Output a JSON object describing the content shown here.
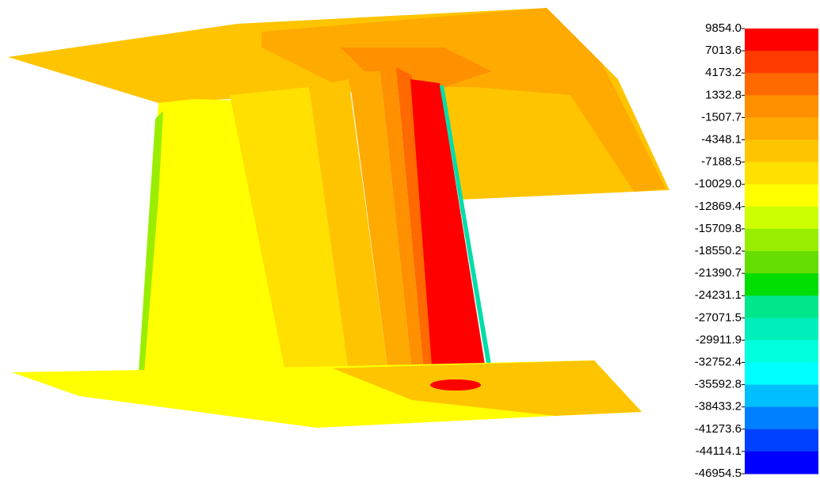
{
  "chart_data": {
    "type": "contour",
    "colorbar": {
      "ticks": [
        {
          "value": 9854.0,
          "label": "9854.0"
        },
        {
          "value": 7013.6,
          "label": "7013.6"
        },
        {
          "value": 4173.2,
          "label": "4173.2"
        },
        {
          "value": 1332.8,
          "label": "1332.8"
        },
        {
          "value": -1507.7,
          "label": "-1507.7"
        },
        {
          "value": -4348.1,
          "label": "-4348.1"
        },
        {
          "value": -7188.5,
          "label": "-7188.5"
        },
        {
          "value": -10029.0,
          "label": "-10029.0"
        },
        {
          "value": -12869.4,
          "label": "-12869.4"
        },
        {
          "value": -15709.8,
          "label": "-15709.8"
        },
        {
          "value": -18550.2,
          "label": "-18550.2"
        },
        {
          "value": -21390.7,
          "label": "-21390.7"
        },
        {
          "value": -24231.1,
          "label": "-24231.1"
        },
        {
          "value": -27071.5,
          "label": "-27071.5"
        },
        {
          "value": -29911.9,
          "label": "-29911.9"
        },
        {
          "value": -32752.4,
          "label": "-32752.4"
        },
        {
          "value": -35592.8,
          "label": "-35592.8"
        },
        {
          "value": -38433.2,
          "label": "-38433.2"
        },
        {
          "value": -41273.6,
          "label": "-41273.6"
        },
        {
          "value": -44114.1,
          "label": "-44114.1"
        },
        {
          "value": -46954.5,
          "label": "-46954.5"
        }
      ],
      "colors": [
        "#ff0000",
        "#ff3a00",
        "#ff6a00",
        "#ff9000",
        "#ffaa00",
        "#ffc400",
        "#ffe000",
        "#ffff00",
        "#ccff00",
        "#99ee00",
        "#66dd00",
        "#00dd00",
        "#00e68a",
        "#00eebb",
        "#00ffdd",
        "#00ffff",
        "#00bfff",
        "#0080ff",
        "#0040ff",
        "#0000ff"
      ]
    }
  }
}
